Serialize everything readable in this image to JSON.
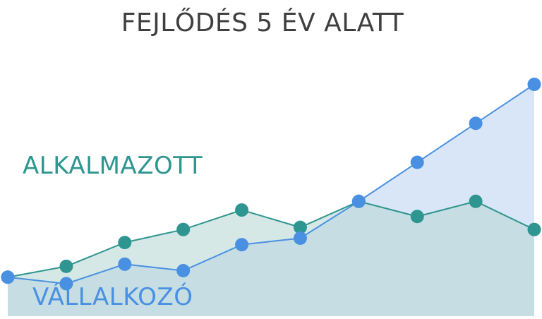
{
  "chart_data": {
    "type": "area",
    "title": "FEJLŐDÉS 5 ÉV ALATT",
    "xlabel": "",
    "ylabel": "",
    "x": [
      1,
      2,
      3,
      4,
      5,
      6,
      7,
      8,
      9,
      10
    ],
    "ylim": [
      0,
      100
    ],
    "grid": false,
    "legend": "inline",
    "series": [
      {
        "name": "ALKALMAZOTT",
        "color": "#2e9590",
        "fill": "#b9d8d6",
        "values": [
          18,
          23,
          34,
          40,
          49,
          41,
          53,
          46,
          53,
          40
        ]
      },
      {
        "name": "VÁLLALKOZÓ",
        "color": "#4a90e2",
        "fill": "#b3cdf0",
        "values": [
          18,
          15,
          24,
          21,
          33,
          36,
          53,
          71,
          89,
          107
        ]
      }
    ]
  }
}
